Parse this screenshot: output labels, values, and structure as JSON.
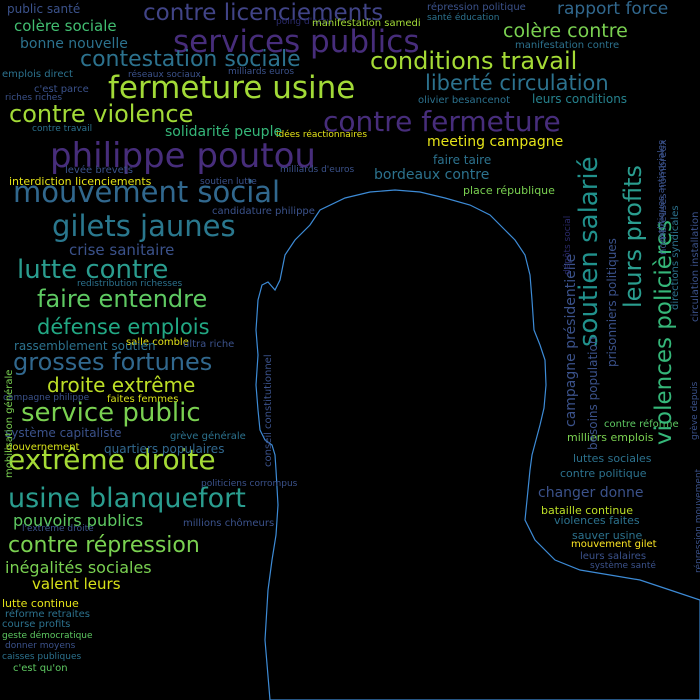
{
  "words": [
    {
      "t": "public santé",
      "c": "#3b528b"
    },
    {
      "t": "contre licenciements",
      "c": "#414487"
    },
    {
      "t": "poing d'actu",
      "c": "#2a2a6a"
    },
    {
      "t": "manifestation samedi",
      "c": "#a2da37"
    },
    {
      "t": "répression politique",
      "c": "#3b528b"
    },
    {
      "t": "rapport force",
      "c": "#31688e"
    },
    {
      "t": "santé éducation",
      "c": "#2c728e"
    },
    {
      "t": "colère sociale",
      "c": "#42be71"
    },
    {
      "t": "services publics",
      "c": "#472d7b"
    },
    {
      "t": "colère contre",
      "c": "#7ad151"
    },
    {
      "t": "bonne nouvelle",
      "c": "#2c728e"
    },
    {
      "t": "manifestation contre",
      "c": "#2c728e"
    },
    {
      "t": "contestation sociale",
      "c": "#2c728e"
    },
    {
      "t": "conditions travail",
      "c": "#a5db36"
    },
    {
      "t": "emplois direct",
      "c": "#2c728e"
    },
    {
      "t": "réseaux sociaux",
      "c": "#3b528b"
    },
    {
      "t": "milliards euros",
      "c": "#3b528b"
    },
    {
      "t": "fermeture usine",
      "c": "#a2da37"
    },
    {
      "t": "liberté circulation",
      "c": "#2c728e"
    },
    {
      "t": "c'est parce",
      "c": "#3b528b"
    },
    {
      "t": "riches riches",
      "c": "#3b528b"
    },
    {
      "t": "olivier besancenot",
      "c": "#2c728e"
    },
    {
      "t": "leurs conditions",
      "c": "#26828e"
    },
    {
      "t": "contre violence",
      "c": "#a2da37"
    },
    {
      "t": "contre fermeture",
      "c": "#472d7b"
    },
    {
      "t": "idées réactionnaires",
      "c": "#e5e419"
    },
    {
      "t": "contre travail",
      "c": "#2c728e"
    },
    {
      "t": "solidarité peuple",
      "c": "#35b779"
    },
    {
      "t": "philippe poutou",
      "c": "#472d7b"
    },
    {
      "t": "meeting campagne",
      "c": "#e5e419"
    },
    {
      "t": "faire taire",
      "c": "#2c728e"
    },
    {
      "t": "levée brevets",
      "c": "#3b528b"
    },
    {
      "t": "milliards d'euros",
      "c": "#3b528b"
    },
    {
      "t": "bordeaux contre",
      "c": "#2c728e"
    },
    {
      "t": "interdiction licenciements",
      "c": "#e5e419"
    },
    {
      "t": "soutien lutte",
      "c": "#3b528b"
    },
    {
      "t": "mouvement social",
      "c": "#31688e"
    },
    {
      "t": "place république",
      "c": "#7ad151"
    },
    {
      "t": "candidature philippe",
      "c": "#3b528b"
    },
    {
      "t": "gilets jaunes",
      "c": "#2a788e"
    },
    {
      "t": "crise sanitaire",
      "c": "#3b528b"
    },
    {
      "t": "lutte contre",
      "c": "#2a9d8f"
    },
    {
      "t": "redistribution richesses",
      "c": "#2c728e"
    },
    {
      "t": "faire entendre",
      "c": "#5ec962"
    },
    {
      "t": "défense emplois",
      "c": "#22a884"
    },
    {
      "t": "salle comble",
      "c": "#e5e419"
    },
    {
      "t": "rassemblement soutien",
      "c": "#2c728e"
    },
    {
      "t": "ultra riche",
      "c": "#3b528b"
    },
    {
      "t": "grosses fortunes",
      "c": "#31688e"
    },
    {
      "t": "droite extrême",
      "c": "#bddf26"
    },
    {
      "t": "campagne philippe",
      "c": "#3b528b"
    },
    {
      "t": "faites femmes",
      "c": "#d8e219"
    },
    {
      "t": "service public",
      "c": "#7ad151"
    },
    {
      "t": "système capitaliste",
      "c": "#3b528b"
    },
    {
      "t": "grève générale",
      "c": "#2c728e"
    },
    {
      "t": "extrême droite",
      "c": "#a5db36"
    },
    {
      "t": "gouvernement",
      "c": "#d8e219"
    },
    {
      "t": "quartiers populaires",
      "c": "#31688e"
    },
    {
      "t": "usine blanquefort",
      "c": "#2a9d8f"
    },
    {
      "t": "politiciens corrompus",
      "c": "#3b528b"
    },
    {
      "t": "pouvoirs publics",
      "c": "#5ec962"
    },
    {
      "t": "millions chômeurs",
      "c": "#3b528b"
    },
    {
      "t": "l'extrême droite",
      "c": "#3b528b"
    },
    {
      "t": "contre répression",
      "c": "#7ad151"
    },
    {
      "t": "inégalités sociales",
      "c": "#7ad151"
    },
    {
      "t": "valent leurs",
      "c": "#d8e219"
    },
    {
      "t": "lutte continue",
      "c": "#e5e419"
    },
    {
      "t": "réforme retraites",
      "c": "#2c728e"
    },
    {
      "t": "course profits",
      "c": "#2c728e"
    },
    {
      "t": "geste démocratique",
      "c": "#5ec962"
    },
    {
      "t": "donner moyens",
      "c": "#3b528b"
    },
    {
      "t": "caisses publiques",
      "c": "#2c728e"
    },
    {
      "t": "c'est qu'on",
      "c": "#5ec962"
    },
    {
      "t": "contre réforme",
      "c": "#5ec962"
    },
    {
      "t": "milliers emplois",
      "c": "#7ad151"
    },
    {
      "t": "luttes sociales",
      "c": "#2c728e"
    },
    {
      "t": "contre politique",
      "c": "#2c728e"
    },
    {
      "t": "changer donne",
      "c": "#3b528b"
    },
    {
      "t": "bataille continue",
      "c": "#bddf26"
    },
    {
      "t": "violences faites",
      "c": "#2c728e"
    },
    {
      "t": "sauver usine",
      "c": "#2c728e"
    },
    {
      "t": "mouvement gilet",
      "c": "#fde725"
    },
    {
      "t": "leurs salaires",
      "c": "#3b528b"
    },
    {
      "t": "système santé",
      "c": "#3b528b"
    },
    {
      "t": "campagne présidentielle",
      "c": "#3b528b"
    },
    {
      "t": "soutien salarié",
      "c": "#21918c"
    },
    {
      "t": "leurs profits",
      "c": "#2a9d8f"
    },
    {
      "t": "violences policières",
      "c": "#35b779"
    },
    {
      "t": "besoins population",
      "c": "#3b528b"
    },
    {
      "t": "prisonniers politiques",
      "c": "#3b528b"
    },
    {
      "t": "conseil constitutionnel",
      "c": "#3b528b"
    },
    {
      "t": "nombreuses nombreux",
      "c": "#3b528b"
    },
    {
      "t": "directions syndicales",
      "c": "#2c728e"
    },
    {
      "t": "politiques antisociales",
      "c": "#3b528b"
    },
    {
      "t": "circulation installation",
      "c": "#3b528b"
    },
    {
      "t": "fermer usine",
      "c": "#2a2a6a"
    },
    {
      "t": "répression mouvement",
      "c": "#3b528b"
    },
    {
      "t": "grève depuis",
      "c": "#3b528b"
    },
    {
      "t": "dépôts social",
      "c": "#2a2a6a"
    },
    {
      "t": "mobilisation générale",
      "c": "#7ad151"
    }
  ],
  "silhouette_color": "#3d8bd6"
}
